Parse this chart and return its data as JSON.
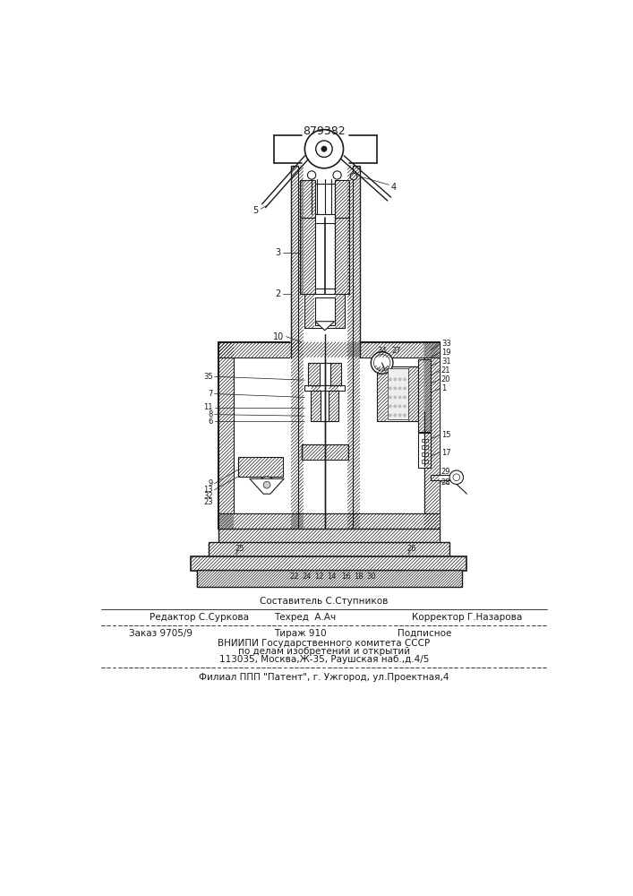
{
  "patent_number": "879382",
  "bg": "#ffffff",
  "lc": "#1a1a1a",
  "footer_texts": {
    "sostavitel": "Составитель С.Ступников",
    "redaktor": "Редактор С.Суркова",
    "tekhred": "Техред  А.Ач",
    "korrektor": "Корректор Г.Назарова",
    "zakaz": "Заказ 9705/9",
    "tirazh": "Тираж 910",
    "podpisnoe": "Подписное",
    "vniipii": "ВНИИПИ Государственного комитета СССР",
    "po_delam": "по делам изобретений и открытий",
    "address": "113035, Москва,Ж-35, Раушская наб.,д.4/5",
    "filial": "Филиал ППП \"Патент\", г. Ужгород, ул.Проектная,4"
  }
}
